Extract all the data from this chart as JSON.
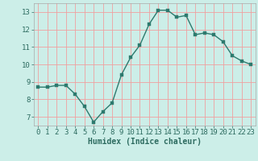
{
  "x": [
    0,
    1,
    2,
    3,
    4,
    5,
    6,
    7,
    8,
    9,
    10,
    11,
    12,
    13,
    14,
    15,
    16,
    17,
    18,
    19,
    20,
    21,
    22,
    23
  ],
  "y": [
    8.7,
    8.7,
    8.8,
    8.8,
    8.3,
    7.6,
    6.7,
    7.3,
    7.8,
    9.4,
    10.4,
    11.1,
    12.3,
    13.1,
    13.1,
    12.7,
    12.8,
    11.7,
    11.8,
    11.7,
    11.3,
    10.5,
    10.2,
    10.0
  ],
  "line_color": "#2d7a6e",
  "marker_color": "#2d7a6e",
  "bg_color": "#cceee8",
  "grid_color": "#f0a0a0",
  "xlabel": "Humidex (Indice chaleur)",
  "xlim": [
    -0.5,
    23.5
  ],
  "ylim": [
    6.5,
    13.5
  ],
  "xticks": [
    0,
    1,
    2,
    3,
    4,
    5,
    6,
    7,
    8,
    9,
    10,
    11,
    12,
    13,
    14,
    15,
    16,
    17,
    18,
    19,
    20,
    21,
    22,
    23
  ],
  "yticks": [
    7,
    8,
    9,
    10,
    11,
    12,
    13
  ],
  "xlabel_fontsize": 7,
  "tick_fontsize": 6.5,
  "line_width": 1.0,
  "marker_size": 2.5
}
